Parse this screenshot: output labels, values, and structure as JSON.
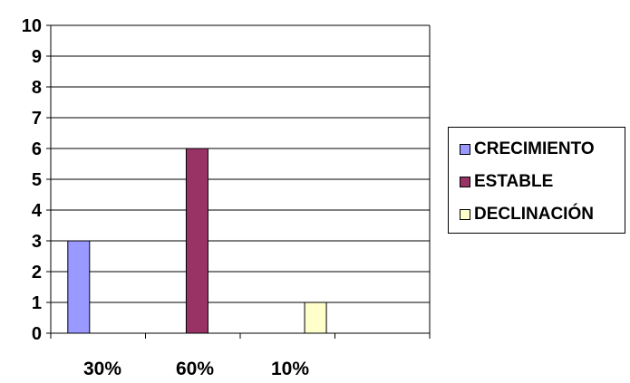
{
  "chart_data": {
    "type": "bar",
    "categories": [
      "30%",
      "60%",
      "10%"
    ],
    "series": [
      {
        "name": "CRECIMIENTO",
        "color": "#9999ff",
        "values": [
          3,
          0,
          0
        ]
      },
      {
        "name": "ESTABLE",
        "color": "#993366",
        "values": [
          0,
          6,
          0
        ]
      },
      {
        "name": "DECLINACIÓN",
        "color": "#ffffcc",
        "values": [
          0,
          0,
          1
        ]
      }
    ],
    "y_ticks": [
      "0",
      "1",
      "2",
      "3",
      "4",
      "5",
      "6",
      "7",
      "8",
      "9",
      "10"
    ],
    "ylim": [
      0,
      10
    ],
    "grid": true,
    "legend_position": "right",
    "title": "",
    "xlabel": "",
    "ylabel": ""
  }
}
